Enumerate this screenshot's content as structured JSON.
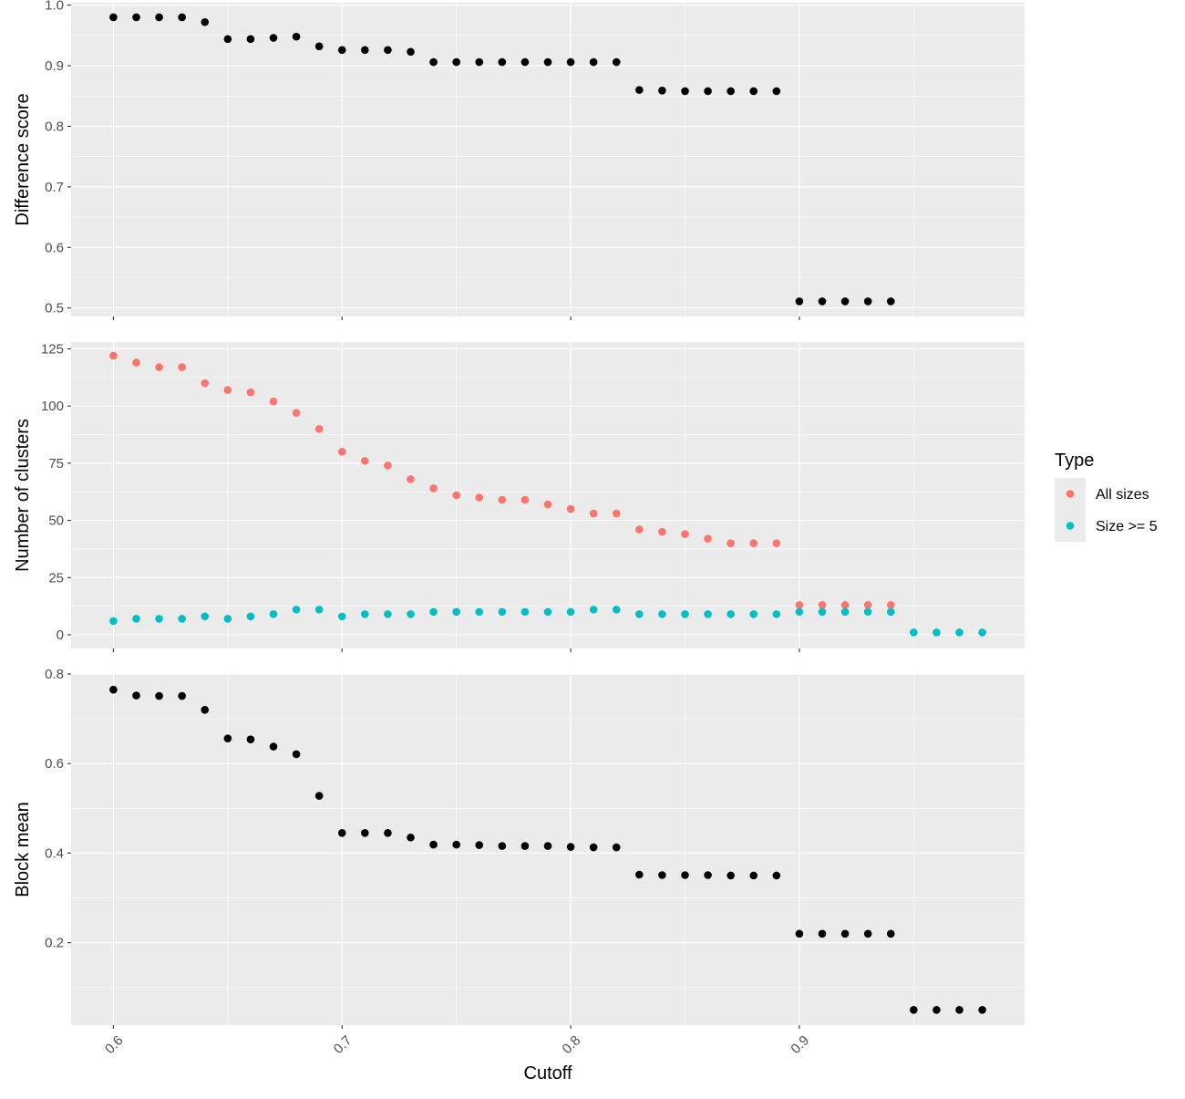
{
  "chart_data": {
    "type": "scatter",
    "xlabel": "Cutoff",
    "x_ticks": [
      0.6,
      0.7,
      0.8,
      0.9
    ],
    "xlim": [
      0.5815,
      0.9985
    ],
    "panel_background": "#ebebeb",
    "grid": true,
    "grid_color": "#ffffff",
    "legend": {
      "title": "Type",
      "position": "right",
      "entries": [
        {
          "label": "All sizes",
          "color": "#F8766D"
        },
        {
          "label": "Size >= 5",
          "color": "#00BFC4"
        }
      ]
    },
    "panels": [
      {
        "ylabel": "Difference score",
        "ylim": [
          0.486,
          1.004
        ],
        "y_ticks": [
          0.5,
          0.6,
          0.7,
          0.8,
          0.9,
          1.0
        ],
        "y_tick_labels": [
          "0.5",
          "0.6",
          "0.7",
          "0.8",
          "0.9",
          "1.0"
        ],
        "series": [
          {
            "color": "#000000",
            "x": [
              0.6,
              0.61,
              0.62,
              0.63,
              0.64,
              0.65,
              0.66,
              0.67,
              0.68,
              0.69,
              0.7,
              0.71,
              0.72,
              0.73,
              0.74,
              0.75,
              0.76,
              0.77,
              0.78,
              0.79,
              0.8,
              0.81,
              0.82,
              0.83,
              0.84,
              0.85,
              0.86,
              0.87,
              0.88,
              0.89,
              0.9,
              0.91,
              0.92,
              0.93,
              0.94
            ],
            "y": [
              0.98,
              0.98,
              0.98,
              0.98,
              0.972,
              0.944,
              0.944,
              0.946,
              0.948,
              0.932,
              0.926,
              0.926,
              0.926,
              0.923,
              0.906,
              0.906,
              0.906,
              0.906,
              0.906,
              0.906,
              0.906,
              0.906,
              0.906,
              0.86,
              0.859,
              0.858,
              0.858,
              0.858,
              0.858,
              0.858,
              0.511,
              0.511,
              0.511,
              0.511,
              0.511
            ]
          }
        ]
      },
      {
        "ylabel": "Number of clusters",
        "ylim": [
          -6,
          128
        ],
        "y_ticks": [
          0,
          25,
          50,
          75,
          100,
          125
        ],
        "y_tick_labels": [
          "0",
          "25",
          "50",
          "75",
          "100",
          "125"
        ],
        "series": [
          {
            "name": "All sizes",
            "color": "#F8766D",
            "x": [
              0.6,
              0.61,
              0.62,
              0.63,
              0.64,
              0.65,
              0.66,
              0.67,
              0.68,
              0.69,
              0.7,
              0.71,
              0.72,
              0.73,
              0.74,
              0.75,
              0.76,
              0.77,
              0.78,
              0.79,
              0.8,
              0.81,
              0.82,
              0.83,
              0.84,
              0.85,
              0.86,
              0.87,
              0.88,
              0.89,
              0.9,
              0.91,
              0.92,
              0.93,
              0.94
            ],
            "y": [
              122,
              119,
              117,
              117,
              110,
              107,
              106,
              102,
              97,
              90,
              80,
              76,
              74,
              68,
              64,
              61,
              60,
              59,
              59,
              57,
              55,
              53,
              53,
              46,
              45,
              44,
              42,
              40,
              40,
              40,
              13,
              13,
              13,
              13,
              13
            ]
          },
          {
            "name": "Size >= 5",
            "color": "#00BFC4",
            "x": [
              0.6,
              0.61,
              0.62,
              0.63,
              0.64,
              0.65,
              0.66,
              0.67,
              0.68,
              0.69,
              0.7,
              0.71,
              0.72,
              0.73,
              0.74,
              0.75,
              0.76,
              0.77,
              0.78,
              0.79,
              0.8,
              0.81,
              0.82,
              0.83,
              0.84,
              0.85,
              0.86,
              0.87,
              0.88,
              0.89,
              0.9,
              0.91,
              0.92,
              0.93,
              0.94,
              0.95,
              0.96,
              0.97,
              0.98
            ],
            "y": [
              6,
              7,
              7,
              7,
              8,
              7,
              8,
              9,
              11,
              11,
              8,
              9,
              9,
              9,
              10,
              10,
              10,
              10,
              10,
              10,
              10,
              11,
              11,
              9,
              9,
              9,
              9,
              9,
              9,
              9,
              10,
              10,
              10,
              10,
              10,
              1,
              1,
              1,
              1
            ]
          }
        ]
      },
      {
        "ylabel": "Block mean",
        "ylim": [
          0.016,
          0.8
        ],
        "y_ticks": [
          0.2,
          0.4,
          0.6,
          0.8
        ],
        "y_tick_labels": [
          "0.2",
          "0.4",
          "0.6",
          "0.8"
        ],
        "series": [
          {
            "color": "#000000",
            "x": [
              0.6,
              0.61,
              0.62,
              0.63,
              0.64,
              0.65,
              0.66,
              0.67,
              0.68,
              0.69,
              0.7,
              0.71,
              0.72,
              0.73,
              0.74,
              0.75,
              0.76,
              0.77,
              0.78,
              0.79,
              0.8,
              0.81,
              0.82,
              0.83,
              0.84,
              0.85,
              0.86,
              0.87,
              0.88,
              0.89,
              0.9,
              0.91,
              0.92,
              0.93,
              0.94,
              0.95,
              0.96,
              0.97,
              0.98
            ],
            "y": [
              0.765,
              0.752,
              0.751,
              0.751,
              0.72,
              0.656,
              0.654,
              0.638,
              0.621,
              0.528,
              0.445,
              0.445,
              0.445,
              0.435,
              0.419,
              0.419,
              0.418,
              0.416,
              0.416,
              0.416,
              0.414,
              0.413,
              0.413,
              0.352,
              0.351,
              0.351,
              0.351,
              0.35,
              0.35,
              0.35,
              0.22,
              0.22,
              0.22,
              0.22,
              0.22,
              0.05,
              0.05,
              0.05,
              0.05
            ]
          }
        ]
      }
    ]
  }
}
